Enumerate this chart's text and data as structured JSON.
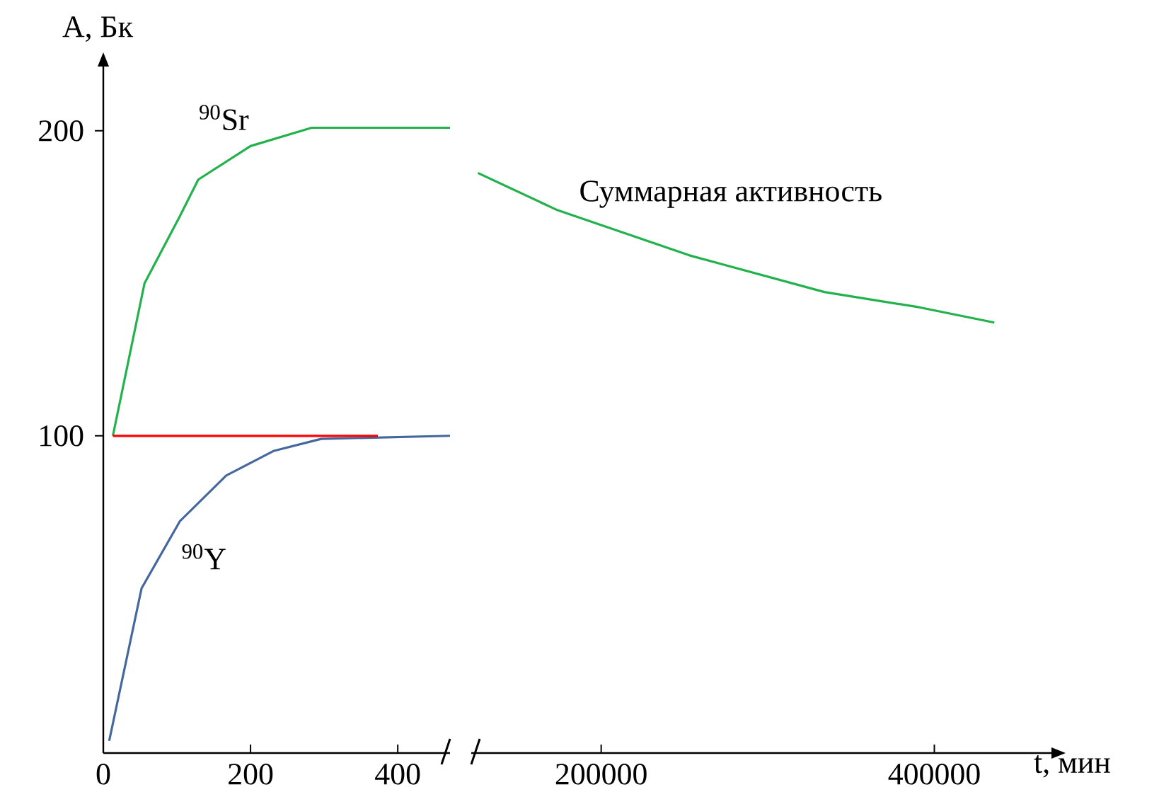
{
  "chart_data": [
    {
      "type": "line",
      "ylabel": "A, Бк",
      "xlim": [
        0,
        471
      ],
      "ylim": [
        -4,
        222
      ],
      "xticks": [
        0,
        200,
        400
      ],
      "yticks": [
        100,
        200
      ],
      "series": [
        {
          "name": "$^{90}$Sr",
          "color": "#21b24b",
          "x": [
            13,
            56,
            104,
            129,
            200,
            283,
            471
          ],
          "values": [
            100,
            150,
            172,
            184,
            195,
            201,
            201
          ]
        },
        {
          "name": "$^{90}$Y",
          "color": "#44679e",
          "x": [
            8,
            52,
            104,
            167,
            231,
            296,
            471
          ],
          "values": [
            0,
            50,
            72,
            87,
            95,
            99,
            100
          ]
        },
        {
          "color": "#ff0000",
          "x": [
            13,
            373
          ],
          "values": [
            100,
            100
          ]
        }
      ]
    },
    {
      "type": "line",
      "xlabel": "t, мин",
      "xlim": [
        122000,
        472000
      ],
      "ylim": [
        -4,
        200
      ],
      "xticks": [
        200000,
        400000
      ],
      "yticks": [
        100,
        200
      ],
      "tick_labels": "x",
      "series": [
        {
          "name": "Суммарная активность",
          "color": "#21b24b",
          "x": [
            126000,
            173000,
            253000,
            334000,
            391000,
            436000
          ],
          "values": [
            186,
            174,
            159,
            147,
            142,
            137
          ]
        }
      ]
    }
  ]
}
